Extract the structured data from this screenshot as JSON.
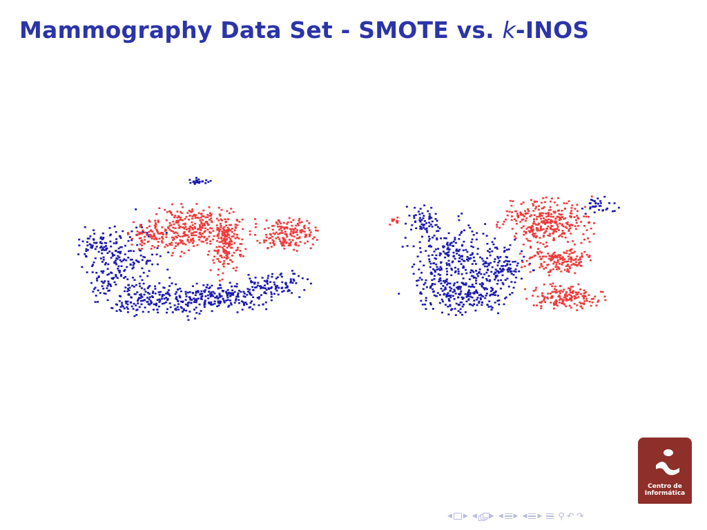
{
  "slide": {
    "title_main": "Mammography Data Set - SMOTE vs. ",
    "title_k": "k",
    "title_end": "-INOS"
  },
  "logo": {
    "line1": "Centro de",
    "line2": "Informática"
  },
  "colors": {
    "title": "#2b34a8",
    "majority_class": "#1a1ab0",
    "synthetic_minority": "#f03a3a",
    "logo_bg": "#8e2f2a",
    "nav": "#b7bbd9"
  },
  "navigation": {
    "icons": [
      "nav-frame-prev-icon",
      "nav-frame-icon",
      "nav-frame-next-icon",
      "nav-subsection-prev-icon",
      "nav-subsection-icon",
      "nav-subsection-next-icon",
      "nav-section-prev-icon",
      "nav-section-icon",
      "nav-section-next-icon",
      "nav-subsubsection-prev-icon",
      "nav-subsubsection-icon",
      "nav-subsubsection-next-icon",
      "nav-align-icon",
      "nav-search-icon",
      "nav-undo-icon",
      "nav-redo-icon"
    ]
  },
  "chart_data": [
    {
      "type": "scatter",
      "title": "",
      "xlabel": "",
      "ylabel": "",
      "grid": false,
      "legend": "none",
      "series": [
        {
          "color": "#1a1ab0",
          "clusters": [
            {
              "cx": 20,
              "cy": 60,
              "rx": 20,
              "ry": 40,
              "n": 220
            },
            {
              "cx": 35,
              "cy": 80,
              "rx": 30,
              "ry": 15,
              "n": 180
            },
            {
              "cx": 55,
              "cy": 78,
              "rx": 25,
              "ry": 12,
              "n": 170
            },
            {
              "cx": 75,
              "cy": 70,
              "rx": 18,
              "ry": 10,
              "n": 90
            },
            {
              "cx": 12,
              "cy": 45,
              "rx": 10,
              "ry": 12,
              "n": 60
            },
            {
              "cx": 48,
              "cy": 5,
              "rx": 6,
              "ry": 3,
              "n": 25
            }
          ]
        },
        {
          "color": "#f03a3a",
          "clusters": [
            {
              "cx": 45,
              "cy": 35,
              "rx": 22,
              "ry": 20,
              "n": 300
            },
            {
              "cx": 58,
              "cy": 45,
              "rx": 8,
              "ry": 25,
              "n": 160
            },
            {
              "cx": 80,
              "cy": 38,
              "rx": 15,
              "ry": 14,
              "n": 170
            },
            {
              "cx": 30,
              "cy": 40,
              "rx": 10,
              "ry": 10,
              "n": 60
            }
          ]
        }
      ]
    },
    {
      "type": "scatter",
      "title": "",
      "xlabel": "",
      "ylabel": "",
      "grid": false,
      "legend": "none",
      "series": [
        {
          "color": "#1a1ab0",
          "clusters": [
            {
              "cx": 30,
              "cy": 55,
              "rx": 20,
              "ry": 35,
              "n": 260
            },
            {
              "cx": 35,
              "cy": 78,
              "rx": 22,
              "ry": 15,
              "n": 150
            },
            {
              "cx": 48,
              "cy": 60,
              "rx": 15,
              "ry": 25,
              "n": 150
            },
            {
              "cx": 20,
              "cy": 30,
              "rx": 10,
              "ry": 12,
              "n": 60
            },
            {
              "cx": 85,
              "cy": 20,
              "rx": 10,
              "ry": 8,
              "n": 40
            }
          ]
        },
        {
          "color": "#f03a3a",
          "clusters": [
            {
              "cx": 65,
              "cy": 30,
              "rx": 22,
              "ry": 20,
              "n": 320
            },
            {
              "cx": 70,
              "cy": 55,
              "rx": 18,
              "ry": 12,
              "n": 160
            },
            {
              "cx": 72,
              "cy": 78,
              "rx": 18,
              "ry": 10,
              "n": 160
            },
            {
              "cx": 10,
              "cy": 30,
              "rx": 3,
              "ry": 3,
              "n": 12
            }
          ]
        }
      ]
    }
  ]
}
